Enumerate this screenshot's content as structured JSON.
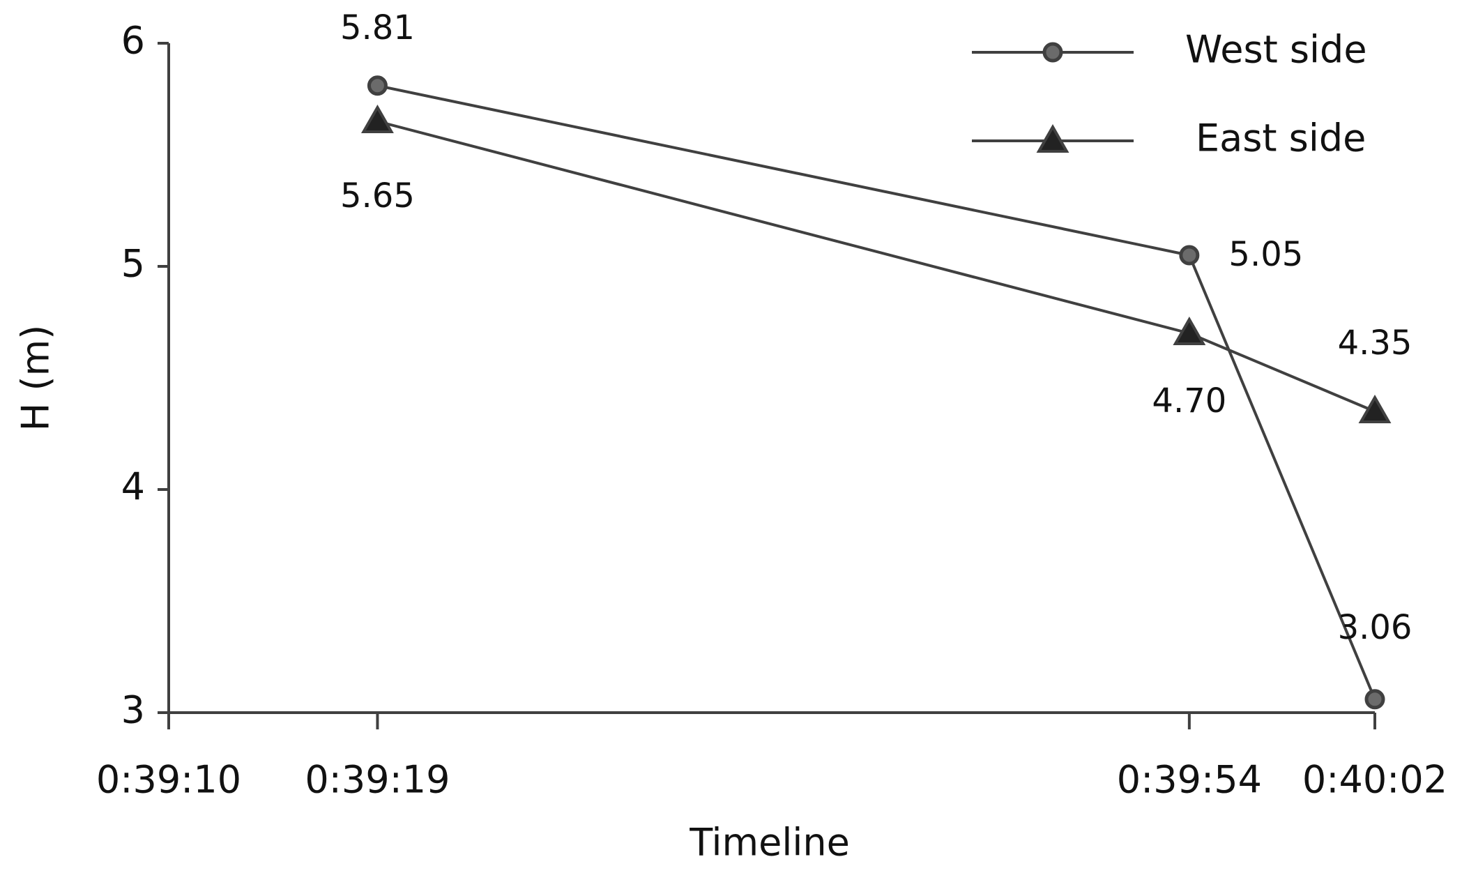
{
  "chart_data": {
    "type": "line",
    "x_label": "Timeline",
    "y_label": "H (m)",
    "x": [
      2359,
      2394,
      2402
    ],
    "xlim": [
      2350,
      2402
    ],
    "xticks": [
      {
        "value": 2350,
        "label": "0:39:10"
      },
      {
        "value": 2359,
        "label": "0:39:19"
      },
      {
        "value": 2394,
        "label": "0:39:54"
      },
      {
        "value": 2402,
        "label": "0:40:02"
      }
    ],
    "ylim": [
      3,
      6
    ],
    "yticks": [
      3,
      4,
      5,
      6
    ],
    "legend": "upper right",
    "series": [
      {
        "name": "West side",
        "color": "#404040",
        "marker": "circle",
        "values": [
          5.81,
          5.05,
          3.06
        ],
        "value_labels": [
          "5.81",
          "5.05",
          "3.06"
        ]
      },
      {
        "name": "East side",
        "color": "#404040",
        "marker": "triangle",
        "values": [
          5.65,
          4.7,
          4.35
        ],
        "value_labels": [
          "5.65",
          "4.70",
          "4.35"
        ]
      }
    ]
  }
}
